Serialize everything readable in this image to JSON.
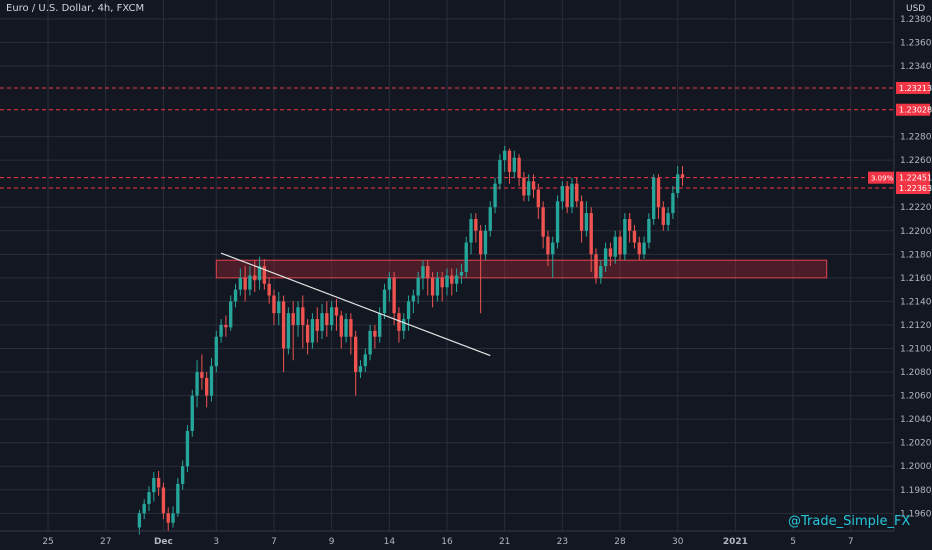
{
  "header": {
    "symbol_title": "Euro / U.S. Dollar, 4h, FXCM",
    "currency": "USD"
  },
  "watermark": "@Trade_Simple_FX",
  "colors": {
    "background": "#131722",
    "up": "#26a69a",
    "down": "#ef5350",
    "zone": "#b22833",
    "trendline": "#e6e6e6",
    "axis_text": "#b2b5be",
    "price_tag": "#f23645"
  },
  "chart_data": {
    "type": "candlestick",
    "ylim": [
      1.1945,
      1.2396
    ],
    "y_ticks": [
      "1.23800",
      "1.23600",
      "1.23400",
      "1.23213",
      "1.23028",
      "1.22800",
      "1.22600",
      "1.22451",
      "1.22363",
      "1.22200",
      "1.22000",
      "1.21800",
      "1.21600",
      "1.21400",
      "1.21200",
      "1.21000",
      "1.20800",
      "1.20600",
      "1.20400",
      "1.20200",
      "1.20000",
      "1.19800",
      "1.19600"
    ],
    "y_tick_values": [
      1.238,
      1.236,
      1.234,
      1.232,
      1.23,
      1.228,
      1.226,
      1.2245,
      1.2236,
      1.222,
      1.22,
      1.218,
      1.216,
      1.214,
      1.212,
      1.21,
      1.208,
      1.206,
      1.204,
      1.202,
      1.2,
      1.198,
      1.196
    ],
    "x_ticks": [
      {
        "label": "25",
        "slot": 5
      },
      {
        "label": "27",
        "slot": 17
      },
      {
        "label": "Dec",
        "slot": 29,
        "bold": true
      },
      {
        "label": "3",
        "slot": 40
      },
      {
        "label": "7",
        "slot": 52
      },
      {
        "label": "9",
        "slot": 64
      },
      {
        "label": "14",
        "slot": 76
      },
      {
        "label": "16",
        "slot": 88
      },
      {
        "label": "21",
        "slot": 100
      },
      {
        "label": "23",
        "slot": 112
      },
      {
        "label": "28",
        "slot": 124
      },
      {
        "label": "30",
        "slot": 136
      },
      {
        "label": "2021",
        "slot": 148,
        "bold": true
      },
      {
        "label": "5",
        "slot": 160
      },
      {
        "label": "7",
        "slot": 172
      }
    ],
    "x_slot_range": [
      -5,
      181
    ],
    "horizontal_levels": [
      {
        "label": "1.23213",
        "value": 1.23213
      },
      {
        "label": "1.23028",
        "value": 1.23028
      },
      {
        "label": "1.22451",
        "value": 1.22451,
        "tag": "3.09%"
      },
      {
        "label": "1.22363",
        "value": 1.22363
      }
    ],
    "zone": {
      "slot_from": 40,
      "slot_to": 167,
      "y_top": 1.2175,
      "y_bottom": 1.216
    },
    "trendline": {
      "from": [
        41,
        1.2181
      ],
      "to": [
        97,
        1.2094
      ]
    },
    "candles": [
      [
        24,
        1.1948,
        1.196,
        1.1942,
        1.1963
      ],
      [
        25,
        1.196,
        1.1968,
        1.1955,
        1.1972
      ],
      [
        26,
        1.1968,
        1.1978,
        1.1962,
        1.1983
      ],
      [
        27,
        1.1978,
        1.199,
        1.197,
        1.1995
      ],
      [
        28,
        1.199,
        1.1982,
        1.1975,
        1.1996
      ],
      [
        29,
        1.1982,
        1.196,
        1.1955,
        1.1986
      ],
      [
        30,
        1.196,
        1.1952,
        1.1945,
        1.1965
      ],
      [
        31,
        1.1952,
        1.196,
        1.1948,
        1.1966
      ],
      [
        32,
        1.196,
        1.1985,
        1.1957,
        1.199
      ],
      [
        33,
        1.1985,
        1.2,
        1.198,
        1.2005
      ],
      [
        34,
        1.2,
        1.203,
        1.1995,
        1.2035
      ],
      [
        35,
        1.203,
        1.206,
        1.2025,
        1.2065
      ],
      [
        36,
        1.206,
        1.208,
        1.205,
        1.209
      ],
      [
        37,
        1.208,
        1.2075,
        1.2065,
        1.2095
      ],
      [
        38,
        1.2075,
        1.206,
        1.205,
        1.208
      ],
      [
        39,
        1.206,
        1.2085,
        1.2055,
        1.2092
      ],
      [
        40,
        1.2085,
        1.211,
        1.208,
        1.2115
      ],
      [
        41,
        1.211,
        1.212,
        1.2105,
        1.2125
      ],
      [
        42,
        1.212,
        1.2118,
        1.211,
        1.2128
      ],
      [
        43,
        1.2118,
        1.214,
        1.2115,
        1.2145
      ],
      [
        44,
        1.214,
        1.215,
        1.2135,
        1.2155
      ],
      [
        45,
        1.215,
        1.216,
        1.2145,
        1.2168
      ],
      [
        46,
        1.216,
        1.215,
        1.214,
        1.217
      ],
      [
        47,
        1.215,
        1.2162,
        1.2145,
        1.217
      ],
      [
        48,
        1.2162,
        1.2158,
        1.2148,
        1.2175
      ],
      [
        49,
        1.2158,
        1.217,
        1.215,
        1.2178
      ],
      [
        50,
        1.217,
        1.2155,
        1.215,
        1.2176
      ],
      [
        51,
        1.2155,
        1.2145,
        1.2138,
        1.216
      ],
      [
        52,
        1.2145,
        1.213,
        1.212,
        1.215
      ],
      [
        53,
        1.213,
        1.214,
        1.212,
        1.2148
      ],
      [
        54,
        1.214,
        1.21,
        1.208,
        1.2145
      ],
      [
        55,
        1.21,
        1.213,
        1.2095,
        1.2135
      ],
      [
        56,
        1.213,
        1.212,
        1.209,
        1.214
      ],
      [
        57,
        1.212,
        1.2135,
        1.211,
        1.214
      ],
      [
        58,
        1.2135,
        1.212,
        1.21,
        1.2145
      ],
      [
        59,
        1.212,
        1.2105,
        1.2095,
        1.2125
      ],
      [
        60,
        1.2105,
        1.2125,
        1.21,
        1.213
      ],
      [
        61,
        1.2125,
        1.2115,
        1.2105,
        1.2135
      ],
      [
        62,
        1.2115,
        1.213,
        1.2108,
        1.2138
      ],
      [
        63,
        1.213,
        1.212,
        1.211,
        1.214
      ],
      [
        64,
        1.212,
        1.2135,
        1.2115,
        1.214
      ],
      [
        65,
        1.2135,
        1.2128,
        1.2115,
        1.2142
      ],
      [
        66,
        1.2128,
        1.211,
        1.21,
        1.2132
      ],
      [
        67,
        1.211,
        1.2125,
        1.2105,
        1.213
      ],
      [
        68,
        1.2125,
        1.211,
        1.2095,
        1.213
      ],
      [
        69,
        1.211,
        1.208,
        1.206,
        1.2115
      ],
      [
        70,
        1.208,
        1.2085,
        1.2075,
        1.209
      ],
      [
        71,
        1.2085,
        1.2095,
        1.208,
        1.21
      ],
      [
        72,
        1.2095,
        1.2115,
        1.209,
        1.212
      ],
      [
        73,
        1.2115,
        1.211,
        1.21,
        1.212
      ],
      [
        74,
        1.211,
        1.213,
        1.2105,
        1.2135
      ],
      [
        75,
        1.213,
        1.215,
        1.2125,
        1.2155
      ],
      [
        76,
        1.215,
        1.216,
        1.214,
        1.2165
      ],
      [
        77,
        1.216,
        1.213,
        1.212,
        1.2165
      ],
      [
        78,
        1.213,
        1.2115,
        1.2105,
        1.2135
      ],
      [
        79,
        1.2115,
        1.2125,
        1.2108,
        1.213
      ],
      [
        80,
        1.2125,
        1.214,
        1.2115,
        1.2145
      ],
      [
        81,
        1.214,
        1.2145,
        1.213,
        1.215
      ],
      [
        82,
        1.2145,
        1.216,
        1.2138,
        1.2165
      ],
      [
        83,
        1.216,
        1.217,
        1.215,
        1.2175
      ],
      [
        84,
        1.217,
        1.216,
        1.2145,
        1.2175
      ],
      [
        85,
        1.216,
        1.2145,
        1.2135,
        1.2165
      ],
      [
        86,
        1.2145,
        1.216,
        1.214,
        1.2165
      ],
      [
        87,
        1.216,
        1.2152,
        1.214,
        1.2165
      ],
      [
        88,
        1.2152,
        1.2162,
        1.2145,
        1.2168
      ],
      [
        89,
        1.2162,
        1.2155,
        1.2145,
        1.2168
      ],
      [
        90,
        1.2155,
        1.2162,
        1.2148,
        1.2168
      ],
      [
        91,
        1.2162,
        1.2165,
        1.2155,
        1.2172
      ],
      [
        92,
        1.2165,
        1.219,
        1.216,
        1.2195
      ],
      [
        93,
        1.219,
        1.221,
        1.218,
        1.2215
      ],
      [
        94,
        1.221,
        1.22,
        1.219,
        1.2215
      ],
      [
        95,
        1.22,
        1.218,
        1.213,
        1.2205
      ],
      [
        96,
        1.218,
        1.22,
        1.2175,
        1.2205
      ],
      [
        97,
        1.22,
        1.222,
        1.2195,
        1.2225
      ],
      [
        98,
        1.222,
        1.224,
        1.2215,
        1.2245
      ],
      [
        99,
        1.224,
        1.226,
        1.2235,
        1.2265
      ],
      [
        100,
        1.226,
        1.2268,
        1.225,
        1.2272
      ],
      [
        101,
        1.2268,
        1.225,
        1.224,
        1.227
      ],
      [
        102,
        1.225,
        1.2262,
        1.2245,
        1.2268
      ],
      [
        103,
        1.2262,
        1.2245,
        1.2238,
        1.2265
      ],
      [
        104,
        1.2245,
        1.223,
        1.2225,
        1.225
      ],
      [
        105,
        1.223,
        1.2242,
        1.2225,
        1.2248
      ],
      [
        106,
        1.2242,
        1.2235,
        1.2228,
        1.2248
      ],
      [
        107,
        1.2235,
        1.222,
        1.221,
        1.224
      ],
      [
        108,
        1.222,
        1.2195,
        1.2185,
        1.2225
      ],
      [
        109,
        1.2195,
        1.218,
        1.217,
        1.22
      ],
      [
        110,
        1.218,
        1.219,
        1.216,
        1.2195
      ],
      [
        111,
        1.219,
        1.2225,
        1.2185,
        1.223
      ],
      [
        112,
        1.2225,
        1.2238,
        1.2218,
        1.2242
      ],
      [
        113,
        1.2238,
        1.222,
        1.2215,
        1.2242
      ],
      [
        114,
        1.222,
        1.224,
        1.2215,
        1.2245
      ],
      [
        115,
        1.224,
        1.2225,
        1.222,
        1.2245
      ],
      [
        116,
        1.2225,
        1.22,
        1.219,
        1.223
      ],
      [
        117,
        1.22,
        1.2215,
        1.2195,
        1.2225
      ],
      [
        118,
        1.2215,
        1.218,
        1.2165,
        1.222
      ],
      [
        119,
        1.218,
        1.216,
        1.2155,
        1.2185
      ],
      [
        120,
        1.216,
        1.217,
        1.2155,
        1.2175
      ],
      [
        121,
        1.217,
        1.2185,
        1.2165,
        1.219
      ],
      [
        122,
        1.2185,
        1.2178,
        1.217,
        1.219
      ],
      [
        123,
        1.2178,
        1.2195,
        1.2172,
        1.22
      ],
      [
        124,
        1.2195,
        1.218,
        1.2175,
        1.22
      ],
      [
        125,
        1.218,
        1.221,
        1.2175,
        1.2215
      ],
      [
        126,
        1.221,
        1.22,
        1.219,
        1.2215
      ],
      [
        127,
        1.22,
        1.219,
        1.2185,
        1.2205
      ],
      [
        128,
        1.219,
        1.218,
        1.2175,
        1.2195
      ],
      [
        129,
        1.218,
        1.219,
        1.2176,
        1.2195
      ],
      [
        130,
        1.219,
        1.221,
        1.2185,
        1.2215
      ],
      [
        131,
        1.221,
        1.2245,
        1.2205,
        1.2248
      ],
      [
        132,
        1.2245,
        1.222,
        1.221,
        1.2248
      ],
      [
        133,
        1.222,
        1.2205,
        1.22,
        1.2225
      ],
      [
        134,
        1.2205,
        1.2215,
        1.22,
        1.222
      ],
      [
        135,
        1.2215,
        1.2232,
        1.221,
        1.2238
      ],
      [
        136,
        1.2232,
        1.2248,
        1.2228,
        1.2255
      ],
      [
        137,
        1.2248,
        1.2245,
        1.2238,
        1.2255
      ]
    ]
  }
}
